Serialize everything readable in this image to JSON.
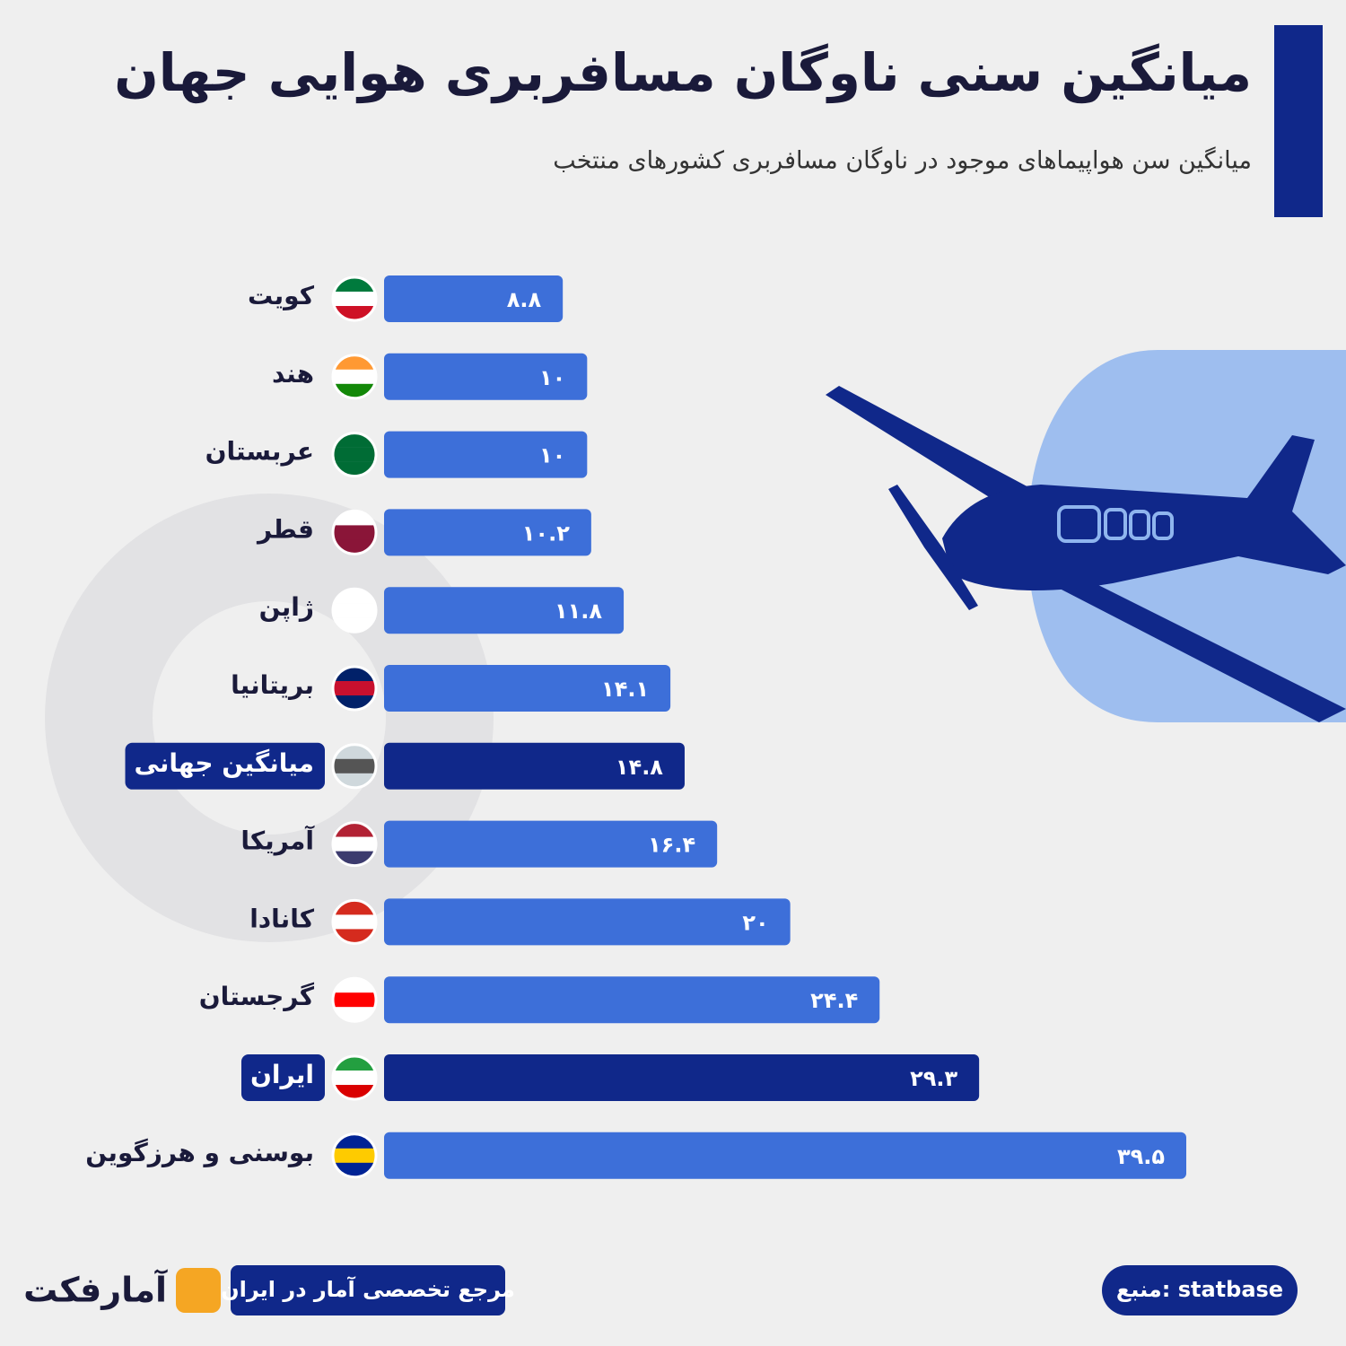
{
  "chart_data": {
    "type": "bar",
    "orientation": "horizontal",
    "title": "میانگین سنی ناوگان مسافربری هوایی جهان",
    "subtitle": "میانگین سن هواپیماهای موجود در ناوگان مسافربری کشورهای منتخب",
    "categories": [
      "کویت",
      "هند",
      "عربستان",
      "قطر",
      "ژاپن",
      "بریتانیا",
      "میانگین جهانی",
      "آمریکا",
      "کانادا",
      "گرجستان",
      "ایران",
      "بوسنی و هرزگوین"
    ],
    "values": [
      8.8,
      10,
      10,
      10.2,
      11.8,
      14.1,
      14.8,
      16.4,
      20,
      24.4,
      29.3,
      39.5
    ],
    "value_labels": [
      "۸.۸",
      "۱۰",
      "۱۰",
      "۱۰.۲",
      "۱۱.۸",
      "۱۴.۱",
      "۱۴.۸",
      "۱۶.۴",
      "۲۰",
      "۲۴.۴",
      "۲۹.۳",
      "۳۹.۵"
    ],
    "colors": [
      "#3d6fd9",
      "#3d6fd9",
      "#3d6fd9",
      "#3d6fd9",
      "#3d6fd9",
      "#3d6fd9",
      "#10288a",
      "#3d6fd9",
      "#3d6fd9",
      "#3d6fd9",
      "#10288a",
      "#3d6fd9"
    ],
    "source": "منبع: statbase",
    "tagline": "مرجع تخصصی آمار در ایران",
    "brand": "آمارفکت"
  }
}
